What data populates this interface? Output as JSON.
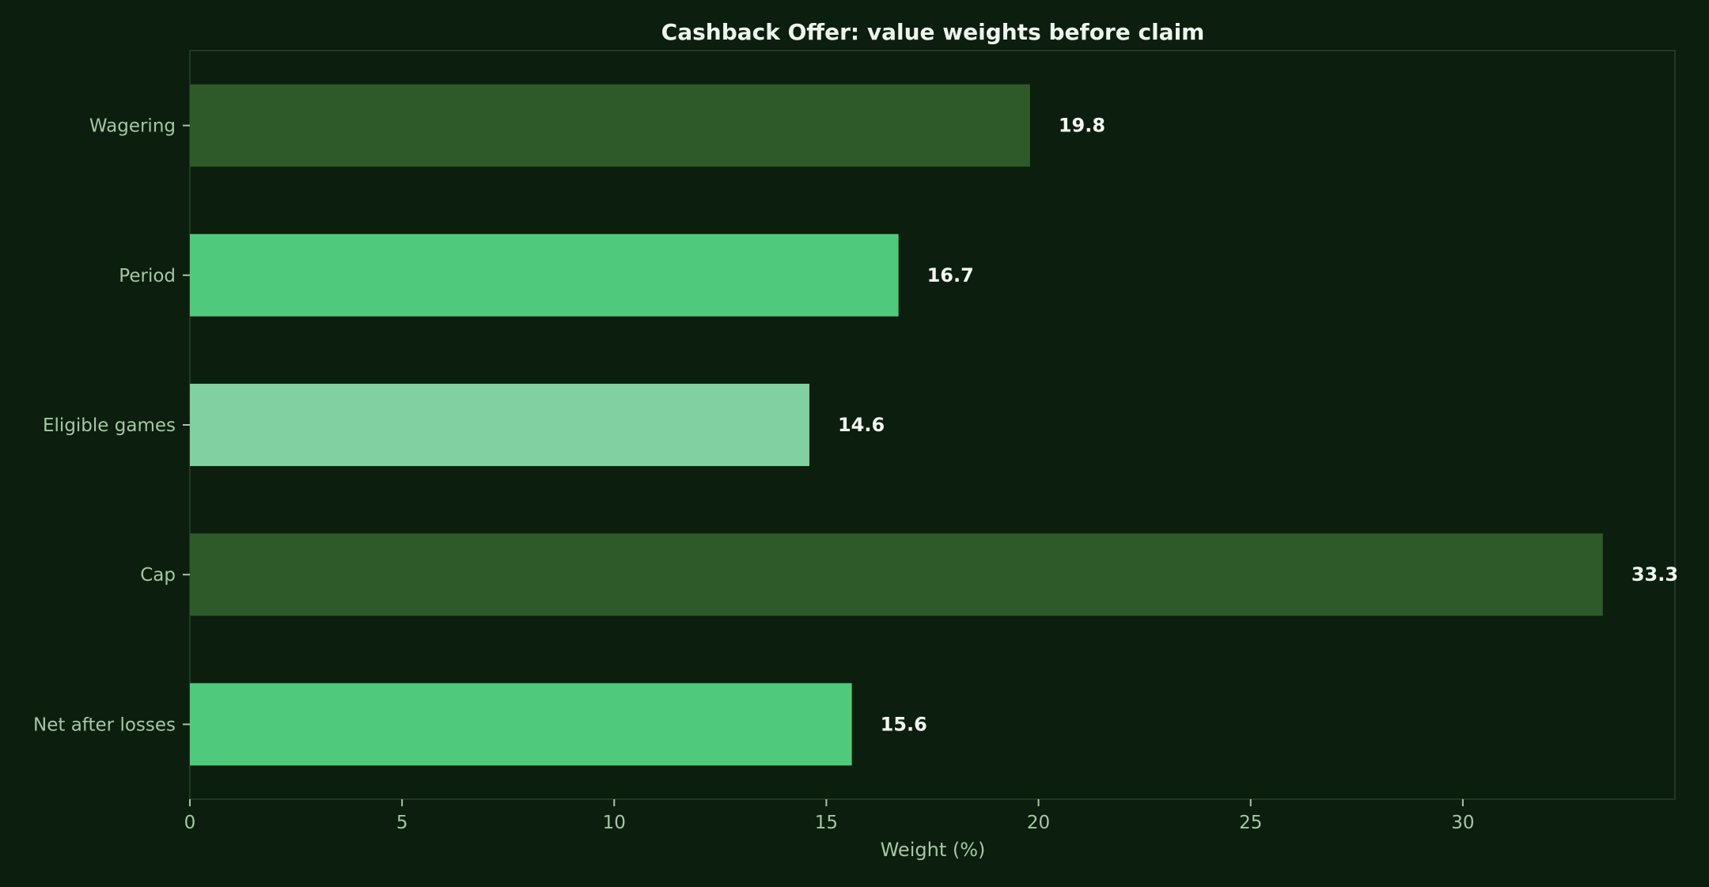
{
  "colors": {
    "background": "#0c1e0d",
    "frame": "#1f3a22",
    "title": "#eef5ee",
    "tick_text": "#a5c7a5",
    "value_text": "#f2f7f2",
    "bar_dark": "#2e5a2a",
    "bar_bright": "#4fca7c",
    "bar_light": "#80d0a1"
  },
  "chart_data": {
    "type": "bar",
    "orientation": "horizontal",
    "title": "Cashback Offer: value weights before claim",
    "xlabel": "Weight (%)",
    "ylabel": "",
    "xlim": [
      0,
      35
    ],
    "xticks": [
      0,
      5,
      10,
      15,
      20,
      25,
      30
    ],
    "xtick_labels": [
      "0",
      "5",
      "10",
      "15",
      "20",
      "25",
      "30"
    ],
    "grid": false,
    "categories": [
      "Wagering",
      "Period",
      "Eligible games",
      "Cap",
      "Net after losses"
    ],
    "values": [
      19.8,
      16.7,
      14.6,
      33.3,
      15.6
    ],
    "value_labels": [
      "19.8",
      "16.7",
      "14.6",
      "33.3",
      "15.6"
    ],
    "bar_colors": [
      "#2e5a2a",
      "#4fca7c",
      "#80d0a1",
      "#2e5a2a",
      "#4fca7c"
    ]
  }
}
